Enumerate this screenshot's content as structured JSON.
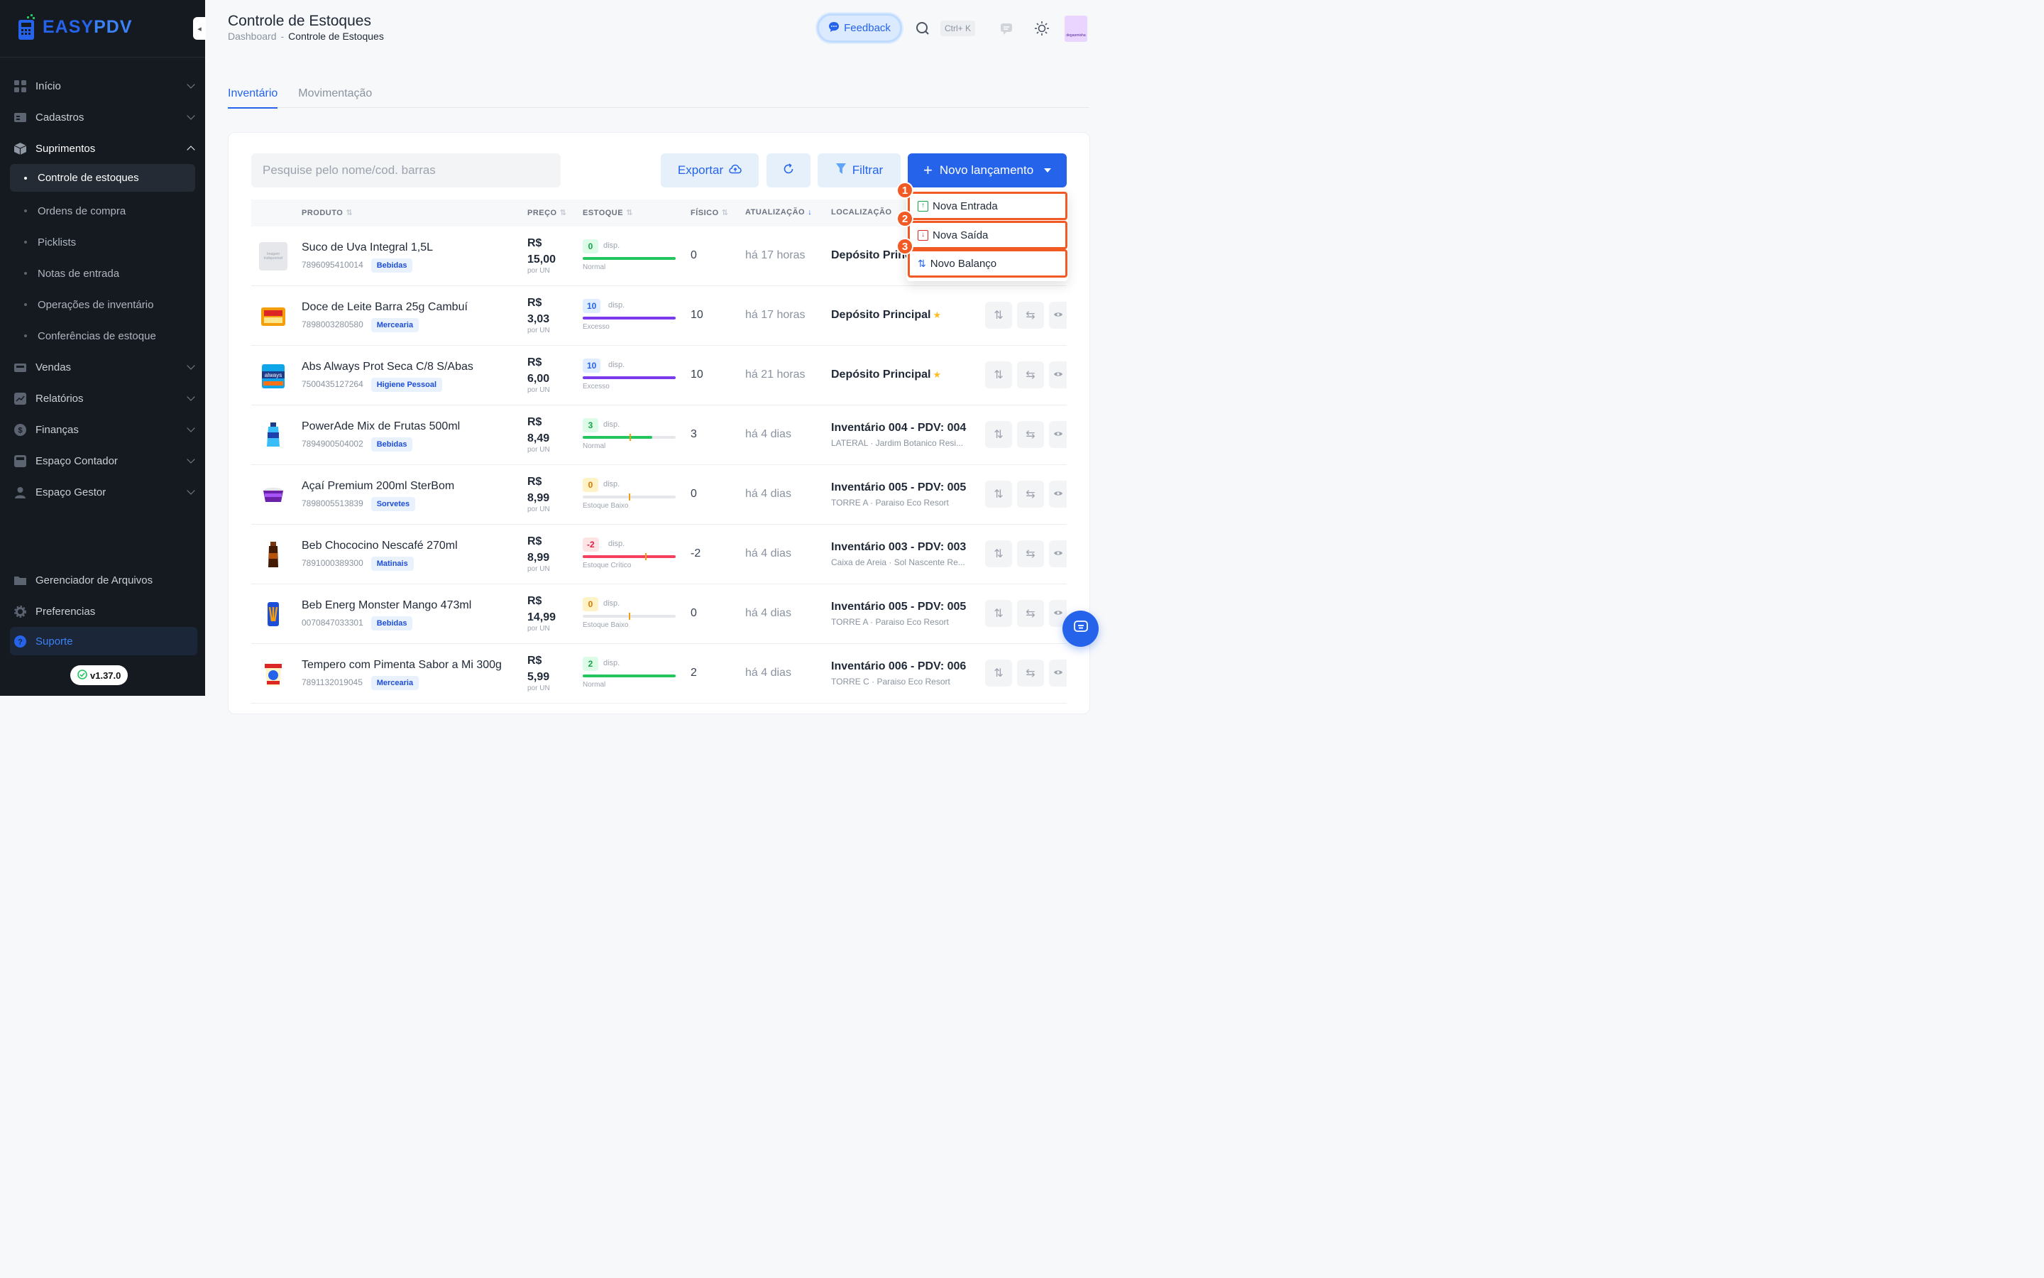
{
  "app": {
    "logo_text_a": "EASY",
    "logo_text_b": "PDV",
    "version": "v1.37.0"
  },
  "sidebar": {
    "items": [
      {
        "label": "Início",
        "icon": "grid-icon"
      },
      {
        "label": "Cadastros",
        "icon": "id-card-icon"
      },
      {
        "label": "Suprimentos",
        "icon": "box-icon"
      },
      {
        "label": "Vendas",
        "icon": "cash-register-icon"
      },
      {
        "label": "Relatórios",
        "icon": "chart-icon"
      },
      {
        "label": "Finanças",
        "icon": "dollar-icon"
      },
      {
        "label": "Espaço Contador",
        "icon": "calculator-icon"
      },
      {
        "label": "Espaço Gestor",
        "icon": "manager-icon"
      }
    ],
    "subitems": [
      {
        "label": "Controle de estoques"
      },
      {
        "label": "Ordens de compra"
      },
      {
        "label": "Picklists"
      },
      {
        "label": "Notas de entrada"
      },
      {
        "label": "Operações de inventário"
      },
      {
        "label": "Conferências de estoque"
      }
    ],
    "bottom": [
      {
        "label": "Gerenciador de Arquivos"
      },
      {
        "label": "Preferencias"
      },
      {
        "label": "Suporte"
      }
    ]
  },
  "header": {
    "title": "Controle de Estoques",
    "breadcrumb": [
      "Dashboard",
      "-",
      "Controle de Estoques"
    ],
    "feedback": "Feedback",
    "shortcut": "Ctrl+ K",
    "avatar_text": "degaomisha"
  },
  "tabs": [
    {
      "label": "Inventário"
    },
    {
      "label": "Movimentação"
    }
  ],
  "toolbar": {
    "search_placeholder": "Pesquise pelo nome/cod. barras",
    "export": "Exportar",
    "filter": "Filtrar",
    "new_entry": "Novo lançamento"
  },
  "dropdown": [
    {
      "num": "1",
      "label": "Nova Entrada",
      "color": "#16a34a"
    },
    {
      "num": "2",
      "label": "Nova Saída",
      "color": "#dc2626"
    },
    {
      "num": "3",
      "label": "Novo Balanço",
      "color": "#2563eb"
    }
  ],
  "table": {
    "headers": {
      "produto": "PRODUTO",
      "preco": "PREÇO",
      "estoque": "ESTOQUE",
      "fisico": "FÍSICO",
      "atualizacao": "ATUALIZAÇÃO",
      "localizacao": "LOCALIZAÇÃO"
    },
    "unit_label": "por UN",
    "disp_label": "disp.",
    "no_image_label": "Imagem Indisponível",
    "rows": [
      {
        "name": "Suco de Uva Integral 1,5L",
        "code": "7896095410014",
        "category": "Bebidas",
        "price_a": "R$",
        "price_b": "15,00",
        "stock": "0",
        "stock_fill": 1.0,
        "stock_color": "#22c55e",
        "stock_bg": "#dcfce7",
        "stock_fg": "#16a34a",
        "status": "Normal",
        "fisico": "0",
        "updated": "há 17 horas",
        "location": "Depósito Principal",
        "star": true,
        "loc_sub": "",
        "thumb": "noimg"
      },
      {
        "name": "Doce de Leite Barra 25g Cambuí",
        "code": "7898003280580",
        "category": "Mercearia",
        "price_a": "R$",
        "price_b": "3,03",
        "stock": "10",
        "stock_fill": 1.0,
        "stock_color": "#7c3aed",
        "stock_bg": "#e0ecff",
        "stock_fg": "#2563eb",
        "status": "Excesso",
        "fisico": "10",
        "updated": "há 17 horas",
        "location": "Depósito Principal",
        "star": true,
        "loc_sub": "",
        "thumb": "doce"
      },
      {
        "name": "Abs Always Prot Seca C/8 S/Abas",
        "code": "7500435127264",
        "category": "Higiene Pessoal",
        "price_a": "R$",
        "price_b": "6,00",
        "stock": "10",
        "stock_fill": 1.0,
        "stock_color": "#7c3aed",
        "stock_bg": "#e0ecff",
        "stock_fg": "#2563eb",
        "status": "Excesso",
        "fisico": "10",
        "updated": "há 21 horas",
        "location": "Depósito Principal",
        "star": true,
        "loc_sub": "",
        "thumb": "always"
      },
      {
        "name": "PowerAde Mix de Frutas 500ml",
        "code": "7894900504002",
        "category": "Bebidas",
        "price_a": "R$",
        "price_b": "8,49",
        "stock": "3",
        "stock_fill": 0.75,
        "stock_color": "#22c55e",
        "stock_bg": "#dcfce7",
        "stock_fg": "#16a34a",
        "status": "Normal",
        "fisico": "3",
        "updated": "há 4 dias",
        "location": "Inventário 004 - PDV: 004",
        "star": false,
        "loc_sub": "LATERAL · Jardim Botanico Resi...",
        "thumb": "powerade"
      },
      {
        "name": "Açaí Premium 200ml SterBom",
        "code": "7898005513839",
        "category": "Sorvetes",
        "price_a": "R$",
        "price_b": "8,99",
        "stock": "0",
        "stock_fill": 0.0,
        "stock_color": "#f59e0b",
        "stock_bg": "#fef3c7",
        "stock_fg": "#d97706",
        "status": "Estoque Baixo",
        "fisico": "0",
        "updated": "há 4 dias",
        "location": "Inventário 005 - PDV: 005",
        "star": false,
        "loc_sub": "TORRE A · Paraiso Eco Resort",
        "thumb": "acai"
      },
      {
        "name": "Beb Chococino Nescafé 270ml",
        "code": "7891000389300",
        "category": "Matinais",
        "price_a": "R$",
        "price_b": "8,99",
        "stock": "-2",
        "stock_fill": 1.0,
        "stock_color": "#f43f5e",
        "stock_bg": "#ffe4e6",
        "stock_fg": "#e11d48",
        "status": "Estoque Crítico",
        "fisico": "-2",
        "updated": "há 4 dias",
        "location": "Inventário 003 - PDV: 003",
        "star": false,
        "loc_sub": "Caixa de Areia · Sol Nascente Re...",
        "thumb": "choco"
      },
      {
        "name": "Beb Energ Monster Mango 473ml",
        "code": "0070847033301",
        "category": "Bebidas",
        "price_a": "R$",
        "price_b": "14,99",
        "stock": "0",
        "stock_fill": 0.0,
        "stock_color": "#f59e0b",
        "stock_bg": "#fef3c7",
        "stock_fg": "#d97706",
        "status": "Estoque Baixo",
        "fisico": "0",
        "updated": "há 4 dias",
        "location": "Inventário 005 - PDV: 005",
        "star": false,
        "loc_sub": "TORRE A · Paraiso Eco Resort",
        "thumb": "monster"
      },
      {
        "name": "Tempero com Pimenta Sabor a Mi 300g",
        "code": "7891132019045",
        "category": "Mercearia",
        "price_a": "R$",
        "price_b": "5,99",
        "stock": "2",
        "stock_fill": 1.0,
        "stock_color": "#22c55e",
        "stock_bg": "#dcfce7",
        "stock_fg": "#16a34a",
        "status": "Normal",
        "fisico": "2",
        "updated": "há 4 dias",
        "location": "Inventário 006 - PDV: 006",
        "star": false,
        "loc_sub": "TORRE C · Paraiso Eco Resort",
        "thumb": "tempero"
      }
    ]
  }
}
